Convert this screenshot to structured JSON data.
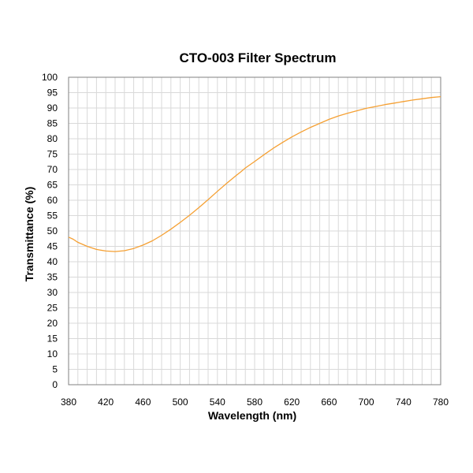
{
  "chart_data": {
    "type": "line",
    "title": "CTO-003 Filter Spectrum",
    "xlabel": "Wavelength (nm)",
    "ylabel": "Transmittance (%)",
    "xlim": [
      380,
      780
    ],
    "ylim": [
      0,
      100
    ],
    "x_ticks": [
      "380",
      "420",
      "460",
      "500",
      "540",
      "580",
      "620",
      "660",
      "700",
      "740",
      "780"
    ],
    "y_ticks": [
      "0",
      "5",
      "10",
      "15",
      "20",
      "25",
      "30",
      "35",
      "40",
      "45",
      "50",
      "55",
      "60",
      "65",
      "70",
      "75",
      "80",
      "85",
      "90",
      "95",
      "100"
    ],
    "grid": true,
    "minor_grid": true,
    "line_color": "#f5a033",
    "grid_color": "#d9d9d9",
    "series": [
      {
        "x": [
          380,
          385,
          390,
          400,
          410,
          420,
          430,
          440,
          450,
          460,
          470,
          480,
          490,
          500,
          510,
          520,
          530,
          540,
          550,
          560,
          565,
          570,
          580,
          590,
          600,
          610,
          620,
          630,
          640,
          650,
          660,
          670,
          680,
          690,
          700,
          710,
          720,
          730,
          740,
          750,
          760,
          770,
          780
        ],
        "values": [
          48.0,
          47.3,
          46.3,
          45.0,
          44.0,
          43.5,
          43.3,
          43.6,
          44.3,
          45.4,
          46.8,
          48.6,
          50.6,
          52.8,
          55.1,
          57.6,
          60.2,
          62.9,
          65.5,
          68.0,
          69.2,
          70.5,
          72.6,
          74.8,
          76.9,
          78.8,
          80.6,
          82.2,
          83.7,
          85.0,
          86.3,
          87.4,
          88.3,
          89.1,
          89.9,
          90.5,
          91.1,
          91.6,
          92.1,
          92.6,
          93.0,
          93.4,
          93.7
        ]
      }
    ]
  }
}
